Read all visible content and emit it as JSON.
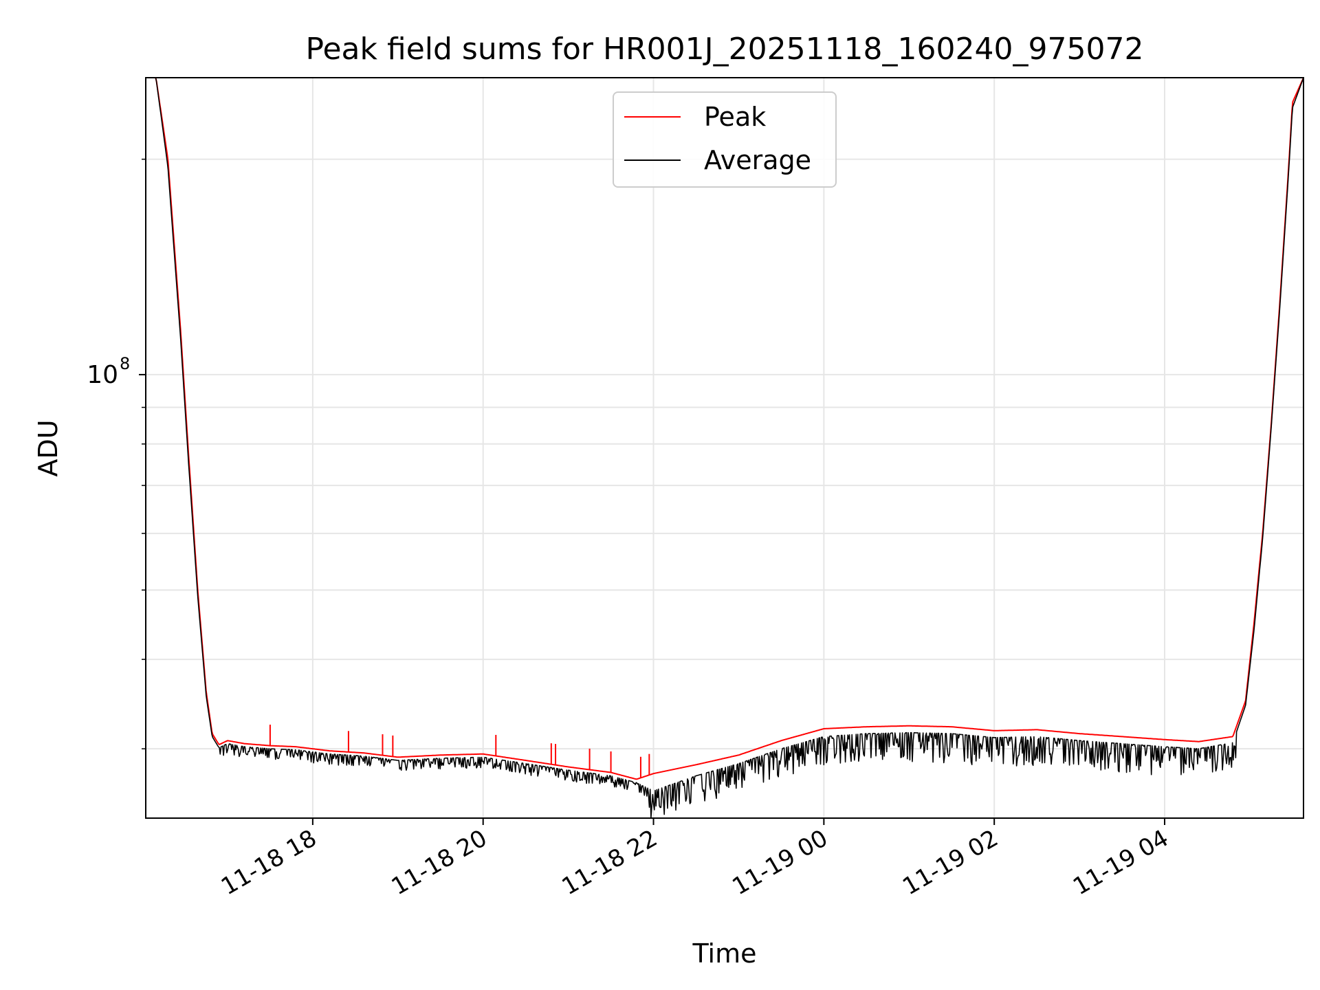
{
  "chart_data": {
    "type": "line",
    "title": "Peak field sums for HR001J_20251118_160240_975072",
    "xlabel": "Time",
    "ylabel": "ADU",
    "yscale": "log",
    "ylim": [
      24000000,
      260000000
    ],
    "xlim_hours": [
      16.04,
      29.63
    ],
    "x_unit": "hours since 2025-11-18 00:00",
    "grid": true,
    "legend_position": "upper-center",
    "x_ticks": [
      {
        "value": 18,
        "label": "11-18 18"
      },
      {
        "value": 20,
        "label": "11-18 20"
      },
      {
        "value": 22,
        "label": "11-18 22"
      },
      {
        "value": 24,
        "label": "11-19 00"
      },
      {
        "value": 26,
        "label": "11-19 02"
      },
      {
        "value": 28,
        "label": "11-19 04"
      }
    ],
    "y_major_ticks": [
      {
        "value": 100000000,
        "label": "10",
        "exponent": "8"
      }
    ],
    "y_minor_ticks": [
      30000000,
      40000000,
      50000000,
      60000000,
      70000000,
      80000000,
      90000000,
      200000000
    ],
    "series": [
      {
        "name": "Peak",
        "color": "#ff0000",
        "x": [
          16.04,
          16.16,
          16.3,
          16.45,
          16.55,
          16.65,
          16.75,
          16.82,
          16.9,
          17.0,
          17.2,
          17.5,
          17.8,
          18.2,
          18.6,
          19.0,
          19.5,
          20.0,
          20.5,
          21.0,
          21.5,
          21.8,
          22.0,
          22.5,
          23.0,
          23.5,
          24.0,
          24.5,
          25.0,
          25.5,
          26.0,
          26.5,
          27.0,
          27.5,
          28.0,
          28.4,
          28.8,
          28.95,
          29.05,
          29.15,
          29.25,
          29.35,
          29.45,
          29.5,
          29.63
        ],
        "y": [
          260000000,
          260000000,
          200000000,
          115000000,
          75000000,
          50000000,
          36000000,
          31500000,
          30400000,
          30800000,
          30500000,
          30300000,
          30200000,
          29800000,
          29600000,
          29200000,
          29400000,
          29500000,
          28900000,
          28300000,
          27800000,
          27200000,
          27700000,
          28500000,
          29400000,
          30800000,
          32000000,
          32200000,
          32300000,
          32200000,
          31800000,
          31900000,
          31500000,
          31200000,
          30900000,
          30700000,
          31200000,
          35000000,
          45000000,
          60000000,
          85000000,
          125000000,
          190000000,
          240000000,
          260000000
        ]
      },
      {
        "name": "Average",
        "color": "#000000",
        "x": [
          16.04,
          16.16,
          16.3,
          16.45,
          16.55,
          16.65,
          16.75,
          16.82,
          16.9,
          17.0,
          17.2,
          17.5,
          17.8,
          18.2,
          18.6,
          19.0,
          19.5,
          20.0,
          20.5,
          21.0,
          21.5,
          21.8,
          22.0,
          22.5,
          23.0,
          23.5,
          24.0,
          24.5,
          25.0,
          25.5,
          26.0,
          26.5,
          27.0,
          27.5,
          28.0,
          28.4,
          28.8,
          28.95,
          29.05,
          29.15,
          29.25,
          29.35,
          29.45,
          29.5,
          29.63
        ],
        "y": [
          260000000,
          260000000,
          195000000,
          112000000,
          73000000,
          49000000,
          35500000,
          31200000,
          30100000,
          30500000,
          30200000,
          30000000,
          29900000,
          29500000,
          29300000,
          28900000,
          29100000,
          29200000,
          28600000,
          28000000,
          27500000,
          26900000,
          26200000,
          27500000,
          28600000,
          30000000,
          31200000,
          31500000,
          31600000,
          31500000,
          31100000,
          31200000,
          30800000,
          30500000,
          30200000,
          30000000,
          30600000,
          34500000,
          44000000,
          59000000,
          84000000,
          123000000,
          187000000,
          236000000,
          260000000
        ]
      }
    ]
  }
}
